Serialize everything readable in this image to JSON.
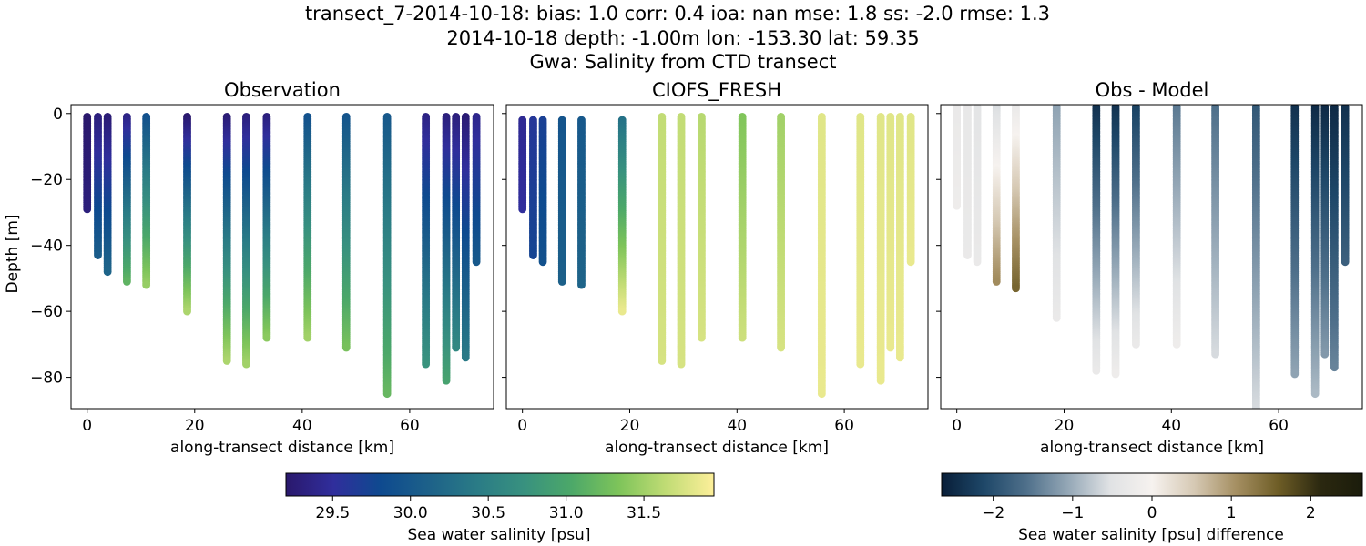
{
  "suptitle": {
    "line1": "transect_7-2014-10-18: bias: 1.0  corr: 0.4  ioa: nan  mse: 1.8  ss: -2.0  rmse: 1.3",
    "line2": "2014-10-18 depth: -1.00m lon: -153.30 lat: 59.35",
    "line3": "Gwa: Salinity from CTD transect"
  },
  "chart_data": [
    {
      "type": "scatter",
      "title": "Observation",
      "xlabel": "along-transect distance [km]",
      "ylabel": "Depth [m]",
      "xlim": [
        -3,
        75.6
      ],
      "ylim": [
        -89.5,
        2.7
      ],
      "x_ticks": [
        0,
        20,
        40,
        60
      ],
      "x_tick_labels": [
        "0",
        "20",
        "40",
        "60"
      ],
      "y_ticks": [
        0,
        -20,
        -40,
        -60,
        -80
      ],
      "y_tick_labels": [
        "0",
        "−20",
        "−40",
        "−60",
        "−80"
      ],
      "colormap": "haline",
      "casts": [
        {
          "x": 0.0,
          "top": -1,
          "bottom": -29,
          "value_top": 29.2,
          "value_bottom": 29.3
        },
        {
          "x": 2.0,
          "top": -1,
          "bottom": -43,
          "value_top": 29.3,
          "value_bottom": 30.05
        },
        {
          "x": 3.8,
          "top": -1,
          "bottom": -48,
          "value_top": 29.25,
          "value_bottom": 30.15
        },
        {
          "x": 7.4,
          "top": -1,
          "bottom": -51,
          "value_top": 29.35,
          "value_bottom": 31.15
        },
        {
          "x": 11.0,
          "top": -1,
          "bottom": -52,
          "value_top": 29.9,
          "value_bottom": 31.45
        },
        {
          "x": 18.6,
          "top": -1,
          "bottom": -60,
          "value_top": 29.2,
          "value_bottom": 31.55
        },
        {
          "x": 26.0,
          "top": -1,
          "bottom": -75,
          "value_top": 29.25,
          "value_bottom": 31.55
        },
        {
          "x": 29.6,
          "top": -1,
          "bottom": -76,
          "value_top": 29.3,
          "value_bottom": 31.5
        },
        {
          "x": 33.4,
          "top": -1,
          "bottom": -68,
          "value_top": 29.3,
          "value_bottom": 31.4
        },
        {
          "x": 41.0,
          "top": -1,
          "bottom": -68,
          "value_top": 29.9,
          "value_bottom": 31.5
        },
        {
          "x": 48.2,
          "top": -1,
          "bottom": -71,
          "value_top": 29.95,
          "value_bottom": 31.3
        },
        {
          "x": 55.8,
          "top": -1,
          "bottom": -85,
          "value_top": 30.0,
          "value_bottom": 31.2
        },
        {
          "x": 63.0,
          "top": -1,
          "bottom": -76,
          "value_top": 29.35,
          "value_bottom": 30.75
        },
        {
          "x": 66.8,
          "top": -1,
          "bottom": -81,
          "value_top": 29.3,
          "value_bottom": 30.95
        },
        {
          "x": 68.6,
          "top": -1,
          "bottom": -71,
          "value_top": 29.3,
          "value_bottom": 30.6
        },
        {
          "x": 70.4,
          "top": -1,
          "bottom": -74,
          "value_top": 29.25,
          "value_bottom": 30.4
        },
        {
          "x": 72.4,
          "top": -1,
          "bottom": -45,
          "value_top": 29.4,
          "value_bottom": 30.0
        }
      ]
    },
    {
      "type": "scatter",
      "title": "CIOFS_FRESH",
      "xlabel": "along-transect distance [km]",
      "ylabel": "",
      "xlim": [
        -3,
        75.6
      ],
      "ylim": [
        -89.5,
        2.7
      ],
      "x_ticks": [
        0,
        20,
        40,
        60
      ],
      "x_tick_labels": [
        "0",
        "20",
        "40",
        "60"
      ],
      "colormap": "haline",
      "casts": [
        {
          "x": 0.0,
          "top": -2,
          "bottom": -29,
          "value_top": 29.45,
          "value_bottom": 29.5
        },
        {
          "x": 2.0,
          "top": -2,
          "bottom": -43,
          "value_top": 29.6,
          "value_bottom": 29.75
        },
        {
          "x": 3.8,
          "top": -2,
          "bottom": -45,
          "value_top": 29.7,
          "value_bottom": 29.9
        },
        {
          "x": 7.4,
          "top": -2,
          "bottom": -51,
          "value_top": 29.95,
          "value_bottom": 30.1
        },
        {
          "x": 11.0,
          "top": -2,
          "bottom": -52,
          "value_top": 30.0,
          "value_bottom": 30.15
        },
        {
          "x": 18.6,
          "top": -2,
          "bottom": -60,
          "value_top": 30.3,
          "value_bottom": 31.85
        },
        {
          "x": 26.0,
          "top": -1,
          "bottom": -75,
          "value_top": 31.65,
          "value_bottom": 31.75
        },
        {
          "x": 29.6,
          "top": -1,
          "bottom": -76,
          "value_top": 31.65,
          "value_bottom": 31.75
        },
        {
          "x": 33.4,
          "top": -1,
          "bottom": -68,
          "value_top": 31.6,
          "value_bottom": 31.75
        },
        {
          "x": 41.0,
          "top": -1,
          "bottom": -68,
          "value_top": 31.35,
          "value_bottom": 31.7
        },
        {
          "x": 48.2,
          "top": -1,
          "bottom": -71,
          "value_top": 31.5,
          "value_bottom": 31.75
        },
        {
          "x": 55.8,
          "top": -1,
          "bottom": -85,
          "value_top": 31.8,
          "value_bottom": 31.85
        },
        {
          "x": 63.0,
          "top": -1,
          "bottom": -76,
          "value_top": 31.8,
          "value_bottom": 31.85
        },
        {
          "x": 66.8,
          "top": -1,
          "bottom": -81,
          "value_top": 31.8,
          "value_bottom": 31.85
        },
        {
          "x": 68.6,
          "top": -1,
          "bottom": -71,
          "value_top": 31.8,
          "value_bottom": 31.85
        },
        {
          "x": 70.4,
          "top": -1,
          "bottom": -74,
          "value_top": 31.8,
          "value_bottom": 31.85
        },
        {
          "x": 72.4,
          "top": -1,
          "bottom": -45,
          "value_top": 31.8,
          "value_bottom": 31.85
        }
      ]
    },
    {
      "type": "scatter",
      "title": "Obs - Model",
      "xlabel": "along-transect distance [km]",
      "ylabel": "",
      "xlim": [
        -3,
        75.6
      ],
      "ylim": [
        -89.5,
        2.7
      ],
      "x_ticks": [
        0,
        20,
        40,
        60
      ],
      "x_tick_labels": [
        "0",
        "20",
        "40",
        "60"
      ],
      "colormap": "diff",
      "casts": [
        {
          "x": 0.0,
          "top": 2,
          "bottom": -28,
          "value_top": -0.3,
          "value_bottom": -0.2
        },
        {
          "x": 2.0,
          "top": 2,
          "bottom": -43,
          "value_top": -0.35,
          "value_bottom": -0.3
        },
        {
          "x": 3.8,
          "top": 2,
          "bottom": -45,
          "value_top": -0.45,
          "value_bottom": -0.3
        },
        {
          "x": 7.4,
          "top": 2,
          "bottom": -51,
          "value_top": -0.6,
          "value_bottom": 1.1
        },
        {
          "x": 11.0,
          "top": 2,
          "bottom": -53,
          "value_top": -0.3,
          "value_bottom": 1.5
        },
        {
          "x": 18.6,
          "top": 2,
          "bottom": -62,
          "value_top": -1.1,
          "value_bottom": -0.3
        },
        {
          "x": 26.0,
          "top": 2,
          "bottom": -78,
          "value_top": -2.4,
          "value_bottom": -0.3
        },
        {
          "x": 29.6,
          "top": 2,
          "bottom": -79,
          "value_top": -2.4,
          "value_bottom": -0.2
        },
        {
          "x": 33.4,
          "top": 2,
          "bottom": -70,
          "value_top": -2.2,
          "value_bottom": -0.3
        },
        {
          "x": 41.0,
          "top": 2,
          "bottom": -70,
          "value_top": -1.5,
          "value_bottom": -0.2
        },
        {
          "x": 48.2,
          "top": 2,
          "bottom": -73,
          "value_top": -1.6,
          "value_bottom": -0.6
        },
        {
          "x": 55.8,
          "top": 2,
          "bottom": -89.5,
          "value_top": -1.9,
          "value_bottom": -0.6
        },
        {
          "x": 63.0,
          "top": 2,
          "bottom": -79,
          "value_top": -2.4,
          "value_bottom": -1.1
        },
        {
          "x": 66.8,
          "top": 2,
          "bottom": -85,
          "value_top": -2.5,
          "value_bottom": -0.9
        },
        {
          "x": 68.6,
          "top": 2,
          "bottom": -73,
          "value_top": -2.5,
          "value_bottom": -1.2
        },
        {
          "x": 70.4,
          "top": 2,
          "bottom": -77,
          "value_top": -2.5,
          "value_bottom": -1.4
        },
        {
          "x": 72.4,
          "top": 2,
          "bottom": -45,
          "value_top": -2.4,
          "value_bottom": -1.8
        }
      ]
    }
  ],
  "colorbars": [
    {
      "label": "Sea water salinity [psu]",
      "colormap": "haline",
      "range": [
        29.2,
        31.95
      ],
      "ticks": [
        29.5,
        30.0,
        30.5,
        31.0,
        31.5
      ],
      "tick_labels": [
        "29.5",
        "30.0",
        "30.5",
        "31.0",
        "31.5"
      ]
    },
    {
      "label": "Sea water salinity [psu] difference",
      "colormap": "diff",
      "range": [
        -2.65,
        2.65
      ],
      "ticks": [
        -2,
        -1,
        0,
        1,
        2
      ],
      "tick_labels": [
        "−2",
        "−1",
        "0",
        "1",
        "2"
      ]
    }
  ],
  "colormaps": {
    "haline": [
      "#2a186c",
      "#302e9c",
      "#0e4a8f",
      "#1d6189",
      "#2a7b86",
      "#38917f",
      "#4ca869",
      "#7ec45a",
      "#c1dc75",
      "#fdef9a"
    ],
    "diff": [
      "#081e38",
      "#1e4768",
      "#4e6f8a",
      "#94a7b6",
      "#e0e2e4",
      "#f6f2ef",
      "#d6c9b4",
      "#a58f62",
      "#6e5d26",
      "#2b2810",
      "#1b1c0b"
    ]
  }
}
